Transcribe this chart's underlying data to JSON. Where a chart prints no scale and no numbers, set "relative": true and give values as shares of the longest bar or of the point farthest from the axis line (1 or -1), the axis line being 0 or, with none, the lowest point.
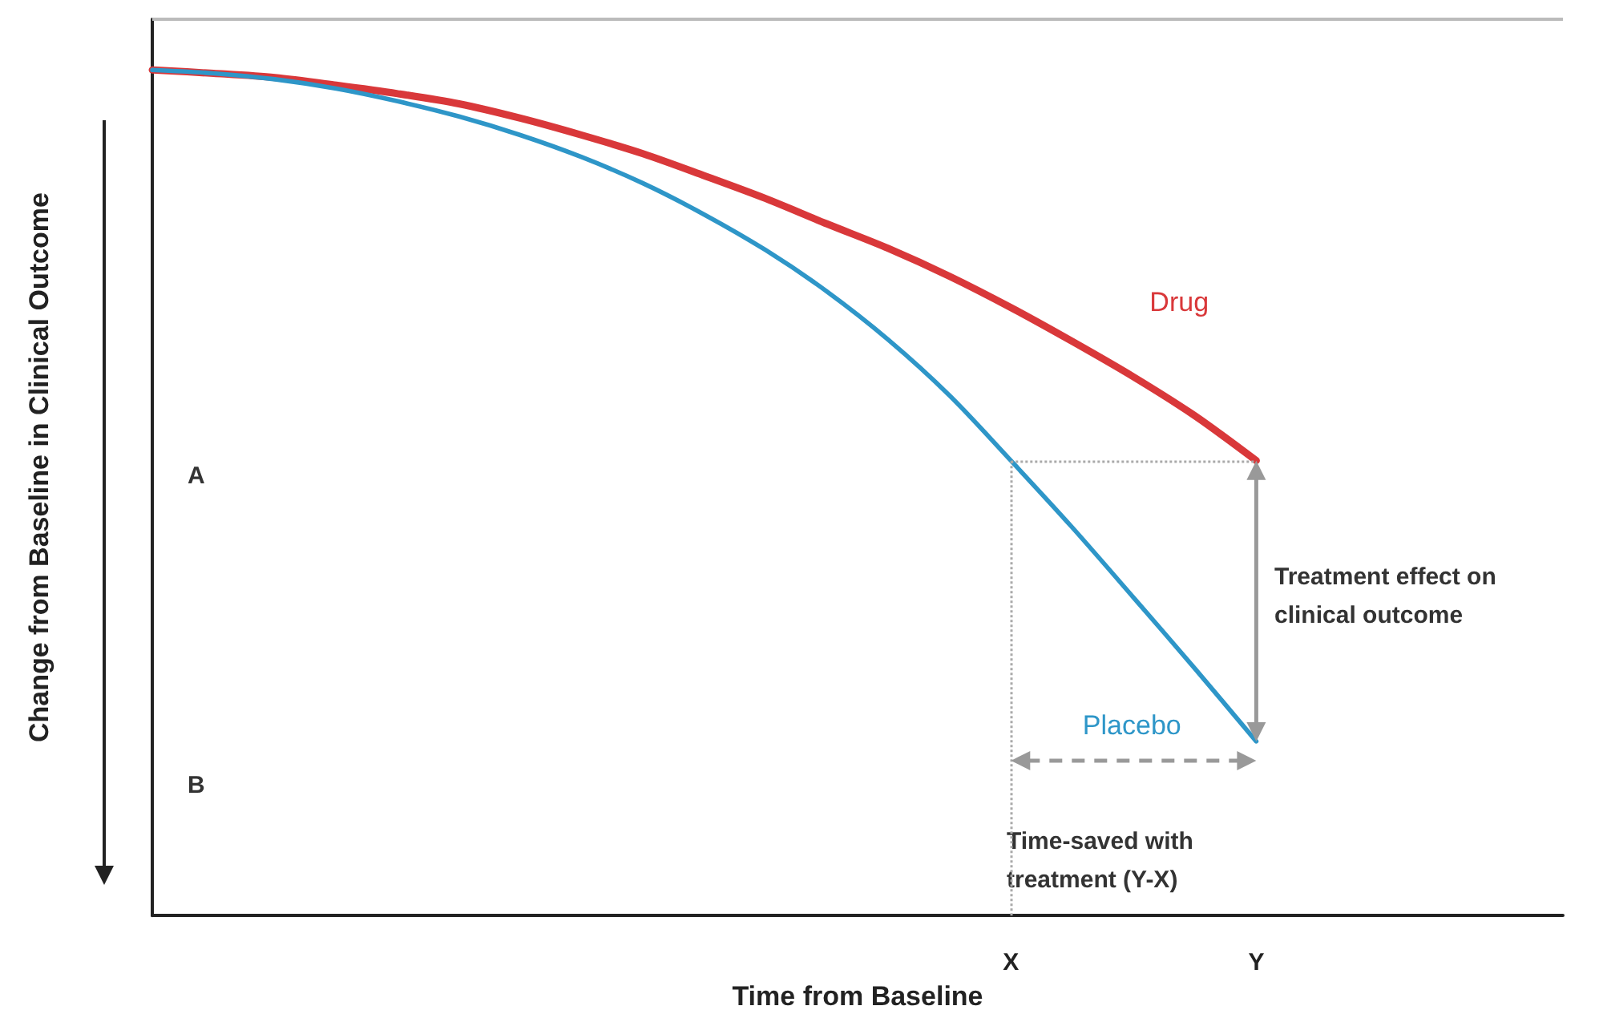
{
  "chart_data": {
    "type": "line",
    "relative": true,
    "xlabel": "Time from Baseline",
    "ylabel": "Change from Baseline in Clinical Outcome",
    "categories": [
      null,
      null,
      null,
      null,
      null,
      null,
      null,
      null,
      null,
      null,
      null,
      null,
      null,
      null,
      "X",
      null,
      null,
      null,
      "Y",
      null,
      null,
      null,
      null,
      null
    ],
    "series": [
      {
        "name": "Drug",
        "color": "#d9383a",
        "values": [
          1,
          0.996,
          0.991,
          0.982,
          0.972,
          0.96,
          0.943,
          0.923,
          0.901,
          0.875,
          0.848,
          0.818,
          0.789,
          0.756,
          0.719,
          0.679,
          0.637,
          0.591,
          0.538,
          null,
          null,
          null,
          null,
          null
        ]
      },
      {
        "name": "Placebo",
        "color": "#2e96c8",
        "values": [
          1,
          0.996,
          0.989,
          0.978,
          0.963,
          0.945,
          0.923,
          0.897,
          0.866,
          0.829,
          0.787,
          0.738,
          0.681,
          0.615,
          0.538,
          0.459,
          0.376,
          0.292,
          0.206,
          null,
          null,
          null,
          null,
          null
        ]
      }
    ],
    "marker": "none",
    "line_style": "solid",
    "ref_lines": [
      {
        "axis": "x",
        "value": "X",
        "line_style": "dotted",
        "color": "#aaaaaa"
      },
      {
        "axis": "y",
        "value": 0.538,
        "line_style": "dotted",
        "color": "#aaaaaa"
      }
    ],
    "annotations": [
      "A",
      "B",
      "Treatment effect on clinical outcome",
      "Time-saved with treatment (Y-X)"
    ]
  }
}
